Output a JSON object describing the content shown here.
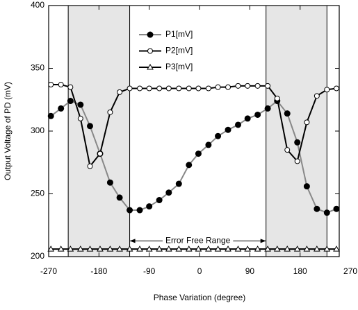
{
  "chart_data": {
    "type": "line",
    "xlabel": "Phase Variation (degree)",
    "ylabel": "Output Voltage of PD (mV)",
    "x": [
      -266,
      -248,
      -231,
      -213,
      -196,
      -178,
      -160,
      -143,
      -125,
      -107,
      -90,
      -72,
      -55,
      -37,
      -19,
      -2,
      16,
      33,
      51,
      69,
      86,
      104,
      122,
      139,
      157,
      175,
      192,
      210,
      228,
      245
    ],
    "series": [
      {
        "name": "P1[mV]",
        "color": "#000000",
        "line_color": "#888888",
        "marker": "circle-filled",
        "values": [
          312,
          318,
          324,
          321,
          304,
          282,
          259,
          247,
          237,
          237,
          240,
          245,
          251,
          258,
          273,
          282,
          289,
          296,
          301,
          305,
          310,
          313,
          318,
          324,
          314,
          291,
          256,
          238,
          235,
          238
        ]
      },
      {
        "name": "P2[mV]",
        "color": "#000000",
        "line_color": "#000000",
        "marker": "circle-open",
        "values": [
          337,
          337,
          335,
          310,
          272,
          282,
          315,
          331,
          334,
          334,
          334,
          334,
          334,
          334,
          334,
          334,
          334,
          335,
          335,
          336,
          336,
          336,
          336,
          326,
          285,
          276,
          307,
          328,
          333,
          334
        ]
      },
      {
        "name": "P3[mV]",
        "color": "#000000",
        "line_color": "#000000",
        "marker": "triangle-open",
        "values": [
          206,
          206,
          206,
          206,
          206,
          206,
          206,
          206,
          206,
          206,
          206,
          206,
          206,
          206,
          206,
          206,
          206,
          206,
          206,
          206,
          206,
          206,
          206,
          206,
          206,
          206,
          206,
          206,
          206,
          206
        ]
      }
    ],
    "xlim": [
      -270,
      250
    ],
    "xticks": [
      -270,
      -180,
      -90,
      0,
      90,
      180,
      270
    ],
    "ylim": [
      200,
      400
    ],
    "yticks": [
      200,
      250,
      300,
      350,
      400
    ],
    "shaded_ranges": [
      [
        -235,
        -125
      ],
      [
        119,
        228
      ]
    ],
    "shade_color": "#e6e6e6",
    "annotation": {
      "text": "Error Free Range",
      "x": [
        -125,
        119
      ],
      "y": 212.5
    }
  }
}
